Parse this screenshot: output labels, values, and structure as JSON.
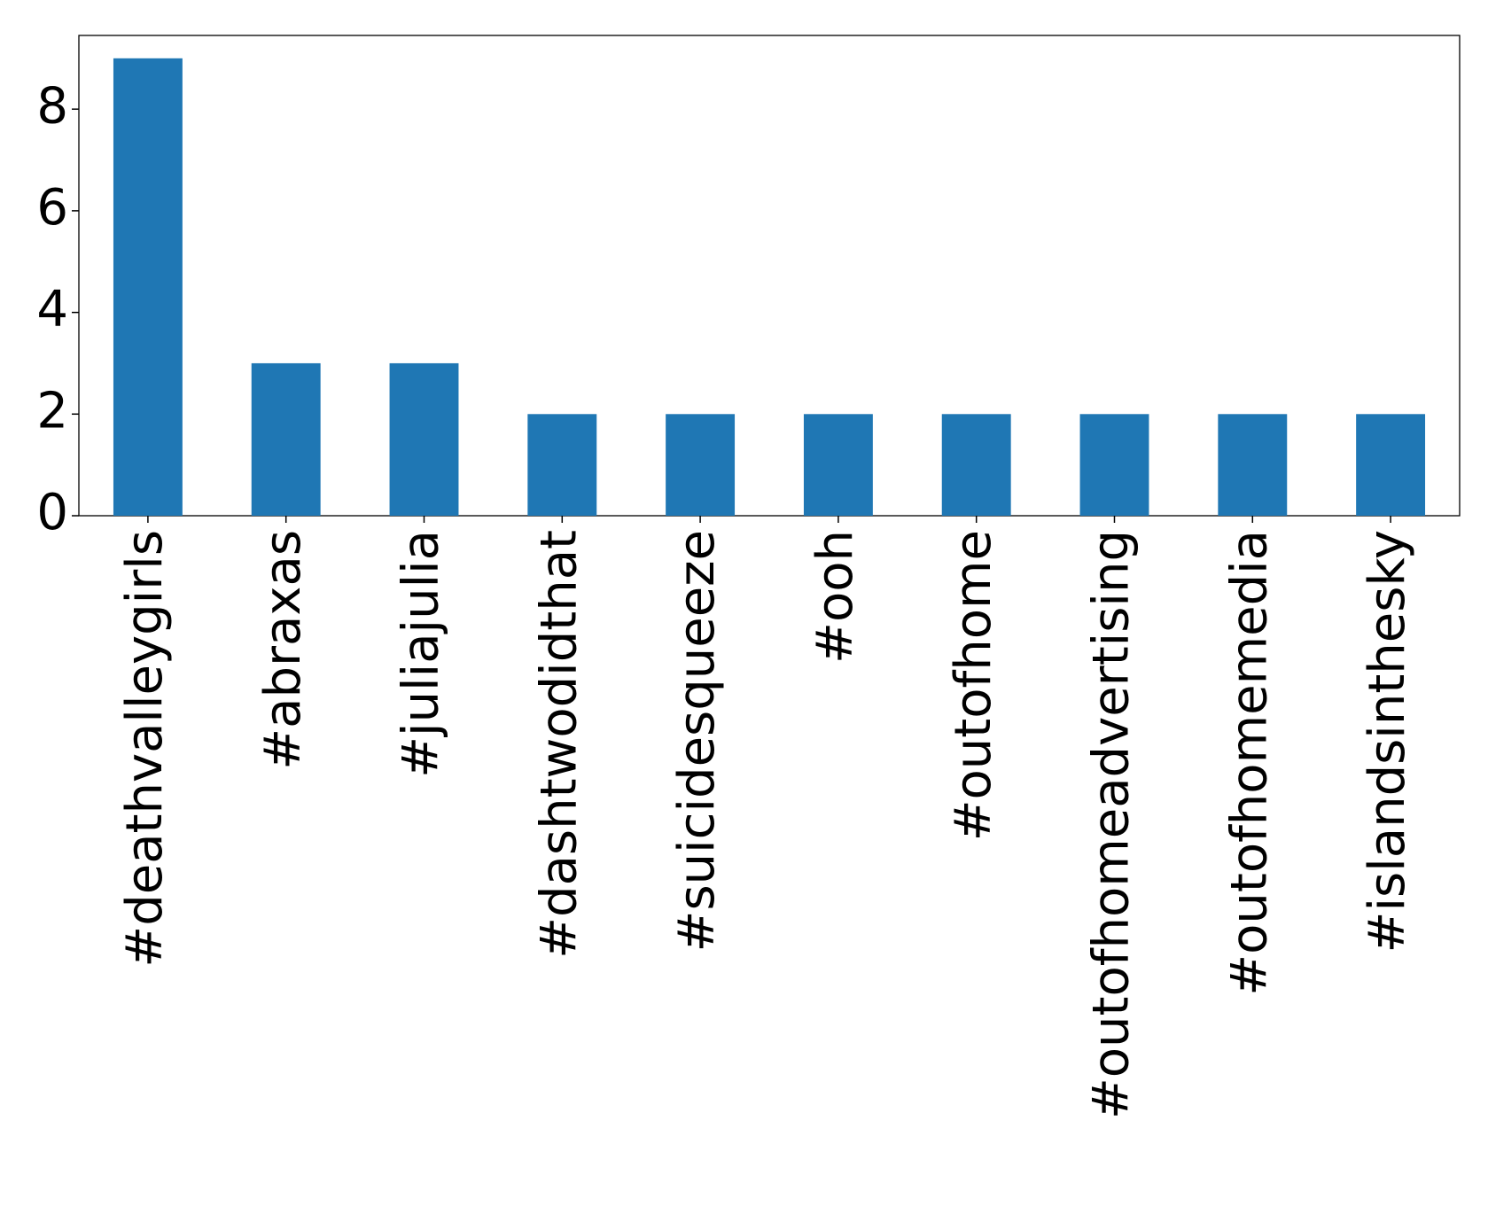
{
  "chart_data": {
    "type": "bar",
    "categories": [
      "#deathvalleygirls",
      "#abraxas",
      "#juliajulia",
      "#dashtwodidthat",
      "#suicidesqueeze",
      "#ooh",
      "#outofhome",
      "#outofhomeadvertising",
      "#outofhomemedia",
      "#islandsinthesky"
    ],
    "values": [
      9,
      3,
      3,
      2,
      2,
      2,
      2,
      2,
      2,
      2
    ],
    "color": "#1f77b4",
    "ylim": [
      0,
      9.45
    ],
    "yticks": [
      0,
      2,
      4,
      6,
      8
    ],
    "grid": false
  }
}
